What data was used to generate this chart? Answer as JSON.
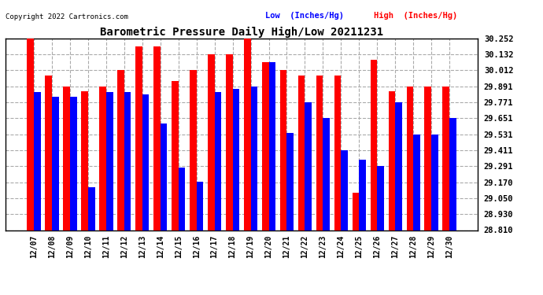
{
  "title": "Barometric Pressure Daily High/Low 20211231",
  "copyright": "Copyright 2022 Cartronics.com",
  "legend_low": "Low  (Inches/Hg)",
  "legend_high": "High  (Inches/Hg)",
  "dates": [
    "12/07",
    "12/08",
    "12/09",
    "12/10",
    "12/11",
    "12/12",
    "12/13",
    "12/14",
    "12/15",
    "12/16",
    "12/17",
    "12/18",
    "12/19",
    "12/20",
    "12/21",
    "12/22",
    "12/23",
    "12/24",
    "12/25",
    "12/26",
    "12/27",
    "12/28",
    "12/29",
    "12/30"
  ],
  "high_values": [
    30.252,
    29.972,
    29.892,
    29.852,
    29.892,
    30.012,
    30.192,
    30.192,
    29.932,
    30.012,
    30.132,
    30.132,
    30.252,
    30.072,
    30.012,
    29.972,
    29.972,
    29.972,
    29.092,
    30.092,
    29.852,
    29.892,
    29.892,
    29.892
  ],
  "low_values": [
    29.851,
    29.811,
    29.811,
    29.131,
    29.851,
    29.851,
    29.831,
    29.611,
    29.281,
    29.171,
    29.851,
    29.871,
    29.891,
    30.072,
    29.541,
    29.771,
    29.651,
    29.411,
    29.341,
    29.291,
    29.771,
    29.531,
    29.531,
    29.651
  ],
  "ylim_min": 28.81,
  "ylim_max": 30.252,
  "yticks": [
    28.81,
    28.93,
    29.05,
    29.17,
    29.291,
    29.411,
    29.531,
    29.651,
    29.771,
    29.891,
    30.012,
    30.132,
    30.252
  ],
  "bar_width": 0.38,
  "high_color": "#ff0000",
  "low_color": "#0000ff",
  "bg_color": "#ffffff",
  "grid_color": "#aaaaaa",
  "title_color": "#000000",
  "copyright_color": "#000000",
  "legend_low_color": "#0000ff",
  "legend_high_color": "#ff0000"
}
